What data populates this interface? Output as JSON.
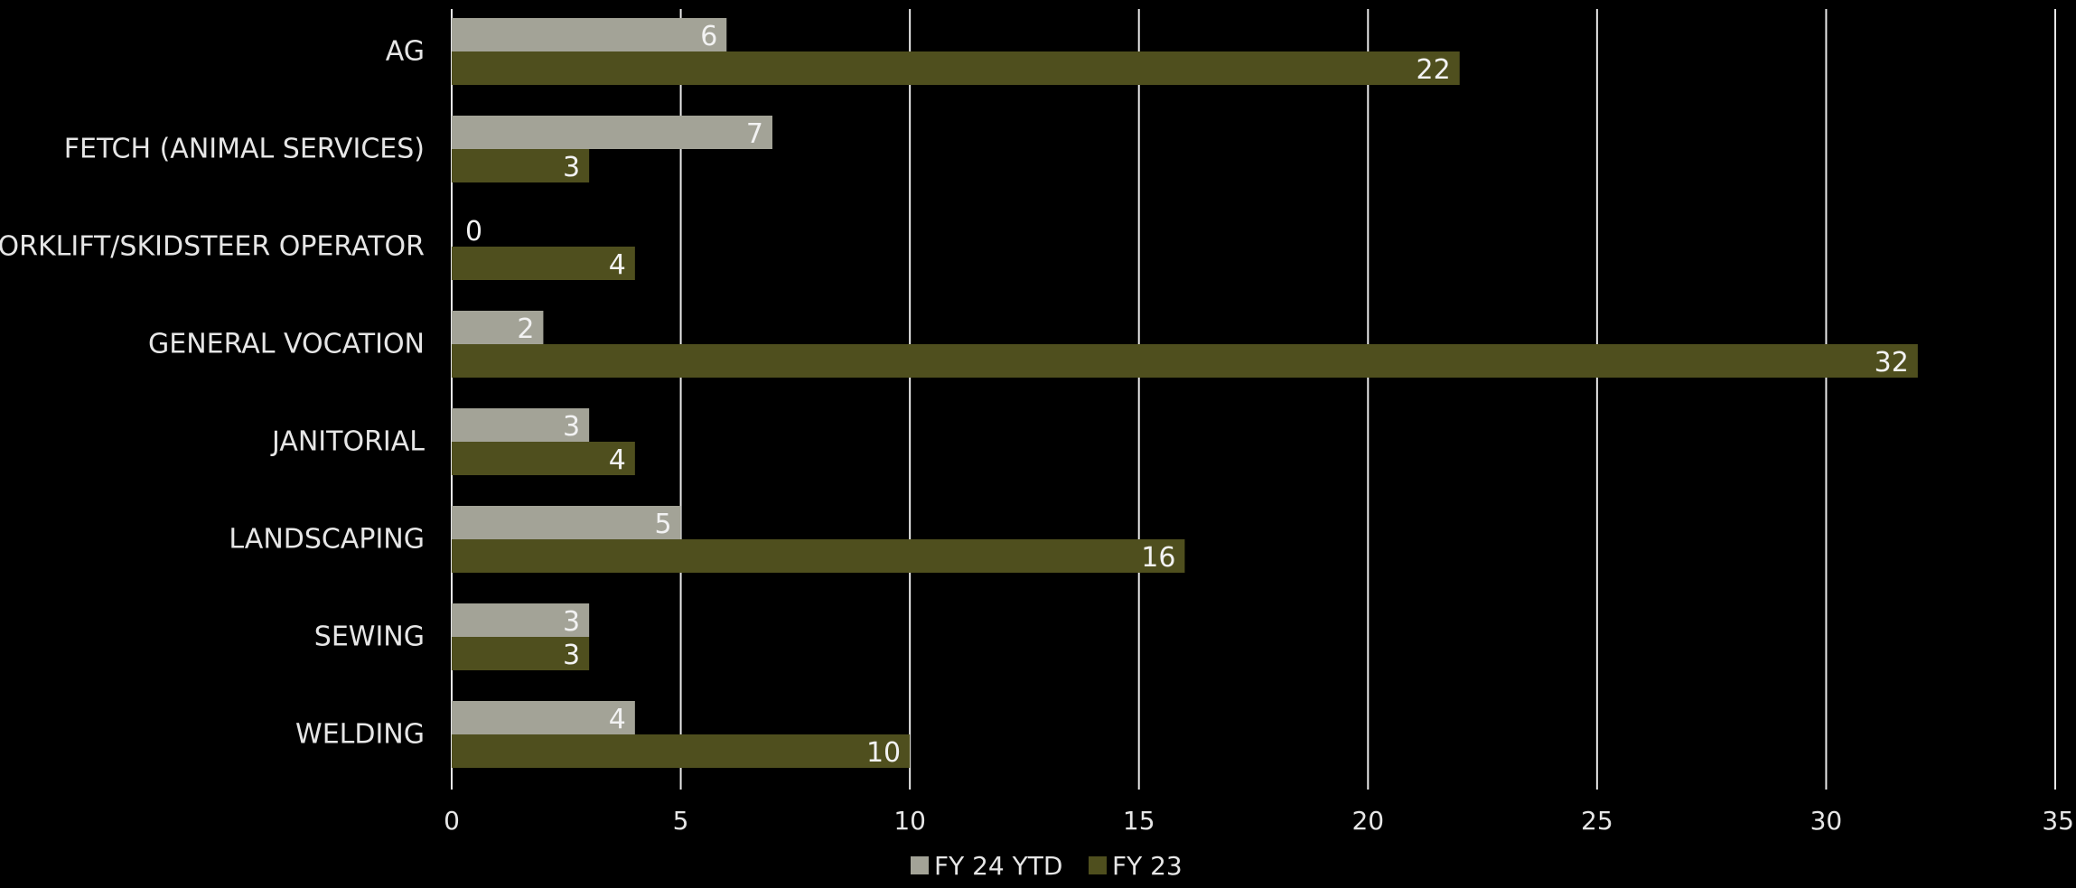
{
  "chart_data": {
    "type": "bar",
    "orientation": "horizontal",
    "title": "",
    "xlabel": "",
    "ylabel": "",
    "categories": [
      "AG",
      "FETCH (ANIMAL SERVICES)",
      "FORKLIFT/SKIDSTEER OPERATOR",
      "GENERAL VOCATION",
      "JANITORIAL",
      "LANDSCAPING",
      "SEWING",
      "WELDING"
    ],
    "series": [
      {
        "name": "FY 24 YTD",
        "color": "#a3a397",
        "values": [
          6,
          7,
          0,
          2,
          3,
          5,
          3,
          4
        ]
      },
      {
        "name": "FY 23",
        "color": "#4f4f1e",
        "values": [
          22,
          3,
          4,
          32,
          4,
          16,
          3,
          10
        ]
      }
    ],
    "xlim": [
      0,
      35
    ],
    "x_ticks": [
      "0",
      "5",
      "10",
      "15",
      "20",
      "25",
      "30",
      "35"
    ],
    "grid": "vertical",
    "data_labels": true,
    "legend_position": "bottom"
  }
}
